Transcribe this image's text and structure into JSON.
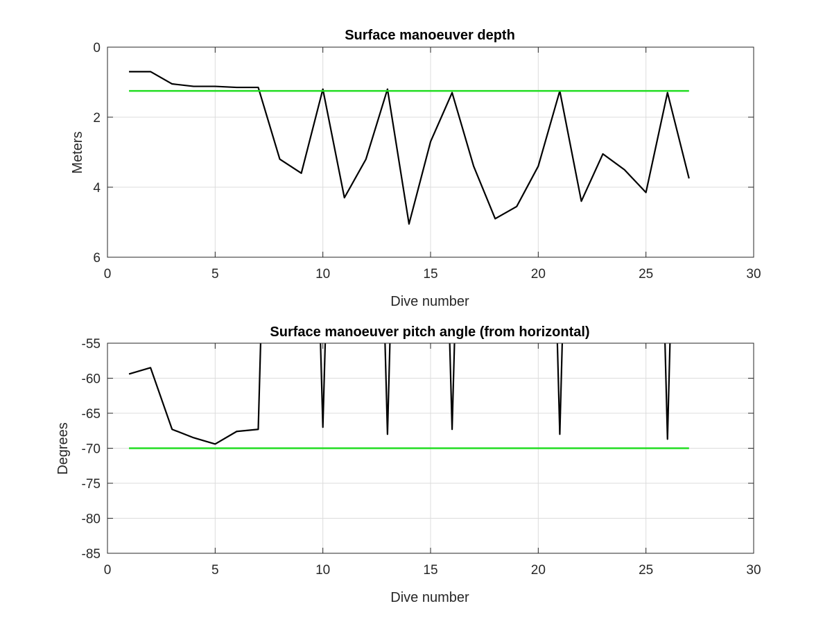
{
  "chart_data": [
    {
      "type": "line",
      "title": "Surface manoeuver depth",
      "xlabel": "Dive number",
      "ylabel": "Meters",
      "xlim": [
        0,
        30
      ],
      "ylim": [
        0,
        6
      ],
      "y_reversed": true,
      "xticks": [
        0,
        5,
        10,
        15,
        20,
        25,
        30
      ],
      "yticks": [
        0,
        2,
        4,
        6
      ],
      "grid": true,
      "series": [
        {
          "color": "#000000",
          "x": [
            1,
            2,
            3,
            4,
            5,
            6,
            7,
            8,
            9,
            10,
            11,
            12,
            13,
            14,
            15,
            16,
            17,
            18,
            19,
            20,
            21,
            22,
            23,
            24,
            25,
            26,
            27
          ],
          "y": [
            0.7,
            0.7,
            1.05,
            1.12,
            1.12,
            1.15,
            1.15,
            3.2,
            3.6,
            1.2,
            4.3,
            3.2,
            1.2,
            5.05,
            2.7,
            1.3,
            3.4,
            4.9,
            4.55,
            3.4,
            1.25,
            4.4,
            3.05,
            3.5,
            4.15,
            1.3,
            3.75
          ]
        },
        {
          "color": "#22dd22",
          "x": [
            1,
            27
          ],
          "y": [
            1.25,
            1.25
          ]
        }
      ]
    },
    {
      "type": "line",
      "title": "Surface manoeuver pitch angle (from horizontal)",
      "xlabel": "Dive number",
      "ylabel": "Degrees",
      "xlim": [
        0,
        30
      ],
      "ylim": [
        -85,
        -55
      ],
      "xticks": [
        0,
        5,
        10,
        15,
        20,
        25,
        30
      ],
      "yticks": [
        -55,
        -60,
        -65,
        -70,
        -75,
        -80,
        -85
      ],
      "grid": true,
      "series": [
        {
          "color": "#000000",
          "x": [
            1,
            2,
            3,
            4,
            5,
            6,
            7,
            7.2,
            9.8,
            10,
            10.2,
            12.8,
            13,
            13.2,
            15.8,
            16,
            16.2,
            20.8,
            21,
            21.2,
            25.8,
            26,
            26.2
          ],
          "y": [
            -59.4,
            -58.5,
            -67.3,
            -68.5,
            -69.4,
            -67.6,
            -67.3,
            -45,
            -45,
            -67.0,
            -45,
            -45,
            -68.0,
            -45,
            -45,
            -67.3,
            -45,
            -45,
            -68.0,
            -45,
            -45,
            -68.7,
            -45
          ]
        },
        {
          "color": "#22dd22",
          "x": [
            1,
            27
          ],
          "y": [
            -70,
            -70
          ]
        }
      ]
    }
  ]
}
